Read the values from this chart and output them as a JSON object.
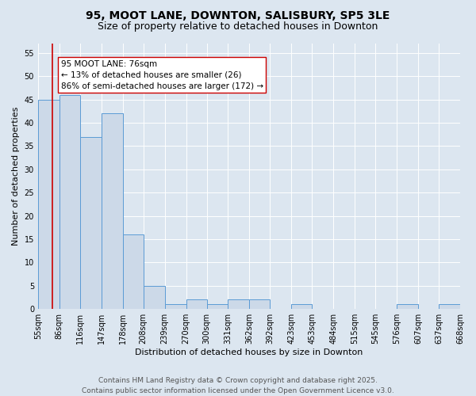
{
  "title": "95, MOOT LANE, DOWNTON, SALISBURY, SP5 3LE",
  "subtitle": "Size of property relative to detached houses in Downton",
  "xlabel": "Distribution of detached houses by size in Downton",
  "ylabel": "Number of detached properties",
  "footer_line1": "Contains HM Land Registry data © Crown copyright and database right 2025.",
  "footer_line2": "Contains public sector information licensed under the Open Government Licence v3.0.",
  "annotation_line1": "95 MOOT LANE: 76sqm",
  "annotation_line2": "← 13% of detached houses are smaller (26)",
  "annotation_line3": "86% of semi-detached houses are larger (172) →",
  "bar_edges": [
    55,
    86,
    116,
    147,
    178,
    208,
    239,
    270,
    300,
    331,
    362,
    392,
    423,
    453,
    484,
    515,
    545,
    576,
    607,
    637,
    668
  ],
  "bar_heights": [
    45,
    46,
    37,
    42,
    16,
    5,
    1,
    2,
    1,
    2,
    2,
    0,
    1,
    0,
    0,
    0,
    0,
    1,
    0,
    1
  ],
  "bar_color": "#ccd9e8",
  "bar_edge_color": "#5b9bd5",
  "vline_x": 76,
  "vline_color": "#cc0000",
  "annotation_box_color": "#cc0000",
  "background_color": "#dce6f0",
  "plot_bg_color": "#dce6f0",
  "ylim": [
    0,
    57
  ],
  "yticks": [
    0,
    5,
    10,
    15,
    20,
    25,
    30,
    35,
    40,
    45,
    50,
    55
  ],
  "grid_color": "#ffffff",
  "title_fontsize": 10,
  "subtitle_fontsize": 9,
  "axis_label_fontsize": 8,
  "tick_fontsize": 7,
  "footer_fontsize": 6.5,
  "annotation_fontsize": 7.5
}
